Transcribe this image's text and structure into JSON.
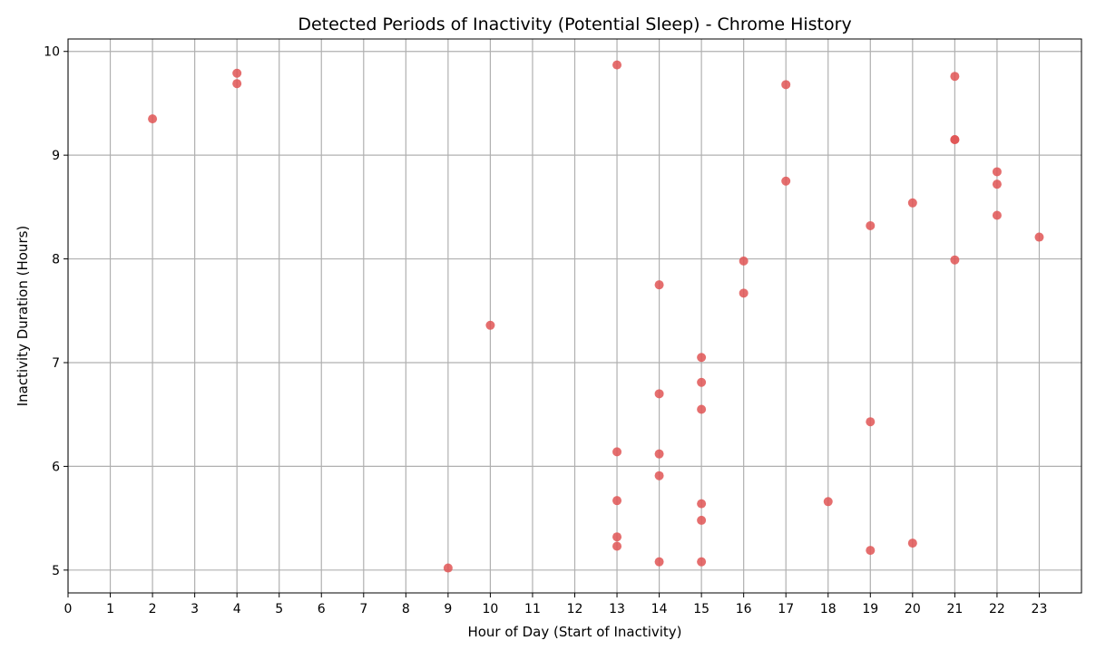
{
  "chart_data": {
    "type": "scatter",
    "title": "Detected Periods of Inactivity (Potential Sleep) - Chrome History",
    "xlabel": "Hour of Day (Start of Inactivity)",
    "ylabel": "Inactivity Duration (Hours)",
    "xlim": [
      0,
      24
    ],
    "ylim": [
      4.78,
      10.12
    ],
    "x_ticks": [
      0,
      1,
      2,
      3,
      4,
      5,
      6,
      7,
      8,
      9,
      10,
      11,
      12,
      13,
      14,
      15,
      16,
      17,
      18,
      19,
      20,
      21,
      22,
      23
    ],
    "y_ticks": [
      5,
      6,
      7,
      8,
      9,
      10
    ],
    "grid": true,
    "point_color": "#e05555",
    "grid_color": "#b0b0b0",
    "points": [
      {
        "x": 2,
        "y": 9.35
      },
      {
        "x": 4,
        "y": 9.79
      },
      {
        "x": 4,
        "y": 9.69
      },
      {
        "x": 9,
        "y": 5.02
      },
      {
        "x": 10,
        "y": 7.36
      },
      {
        "x": 13,
        "y": 9.87
      },
      {
        "x": 13,
        "y": 6.14
      },
      {
        "x": 13,
        "y": 5.67
      },
      {
        "x": 13,
        "y": 5.32
      },
      {
        "x": 13,
        "y": 5.23
      },
      {
        "x": 14,
        "y": 7.75
      },
      {
        "x": 14,
        "y": 6.7
      },
      {
        "x": 14,
        "y": 6.12
      },
      {
        "x": 14,
        "y": 5.91
      },
      {
        "x": 14,
        "y": 5.08
      },
      {
        "x": 15,
        "y": 7.05
      },
      {
        "x": 15,
        "y": 6.81
      },
      {
        "x": 15,
        "y": 6.55
      },
      {
        "x": 15,
        "y": 5.64
      },
      {
        "x": 15,
        "y": 5.48
      },
      {
        "x": 15,
        "y": 5.08
      },
      {
        "x": 16,
        "y": 7.98
      },
      {
        "x": 16,
        "y": 7.67
      },
      {
        "x": 17,
        "y": 9.68
      },
      {
        "x": 17,
        "y": 8.75
      },
      {
        "x": 18,
        "y": 5.66
      },
      {
        "x": 19,
        "y": 8.32
      },
      {
        "x": 19,
        "y": 6.43
      },
      {
        "x": 19,
        "y": 5.19
      },
      {
        "x": 20,
        "y": 8.54
      },
      {
        "x": 20,
        "y": 5.26
      },
      {
        "x": 21,
        "y": 9.76
      },
      {
        "x": 21,
        "y": 9.15
      },
      {
        "x": 21,
        "y": 9.15
      },
      {
        "x": 21,
        "y": 7.99
      },
      {
        "x": 22,
        "y": 8.84
      },
      {
        "x": 22,
        "y": 8.72
      },
      {
        "x": 22,
        "y": 8.42
      },
      {
        "x": 23,
        "y": 8.21
      }
    ]
  }
}
